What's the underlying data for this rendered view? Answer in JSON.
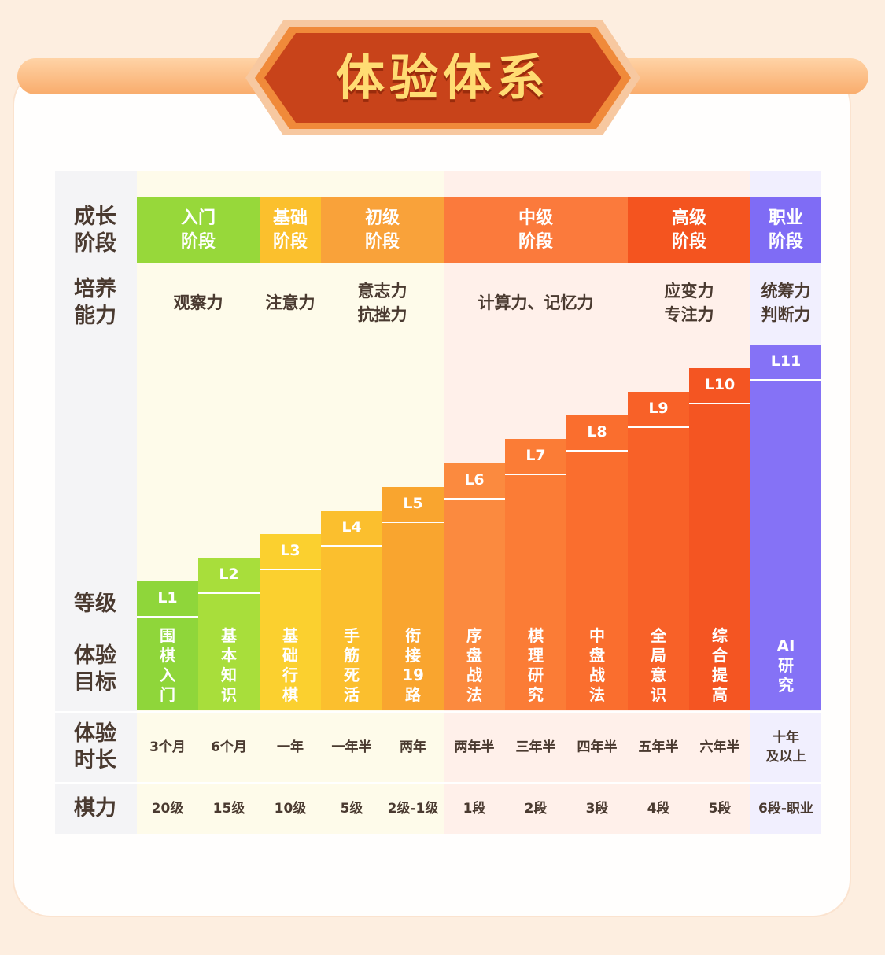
{
  "title": "体验体系",
  "row_labels": {
    "stage": "成长\n阶段",
    "ability": "培养\n能力",
    "level": "等级",
    "goal": "体验\n目标",
    "duration": "体验\n时长",
    "skill": "棋力"
  },
  "stages": [
    {
      "label": "入门\n阶段",
      "color": "#97d83a"
    },
    {
      "label": "基础\n阶段",
      "color": "#fbc02d"
    },
    {
      "label": "初级\n阶段",
      "color": "#f9a23a"
    },
    {
      "label": "中级\n阶段",
      "color": "#fb7a3c"
    },
    {
      "label": "高级\n阶段",
      "color": "#f4541f"
    },
    {
      "label": "职业\n阶段",
      "color": "#7f6cf5"
    }
  ],
  "abilities": [
    "观察力",
    "注意力",
    "意志力\n抗挫力",
    "计算力、记忆力",
    "应变力\n专注力",
    "统筹力\n判断力"
  ],
  "levels": [
    {
      "level": "L1",
      "goal": "围\n棋\n入\n门",
      "duration": "3个月",
      "skill": "20级",
      "color": "#8fd63a",
      "progress": 1
    },
    {
      "level": "L2",
      "goal": "基\n本\n知\n识",
      "duration": "6个月",
      "skill": "15级",
      "color": "#a8de3b",
      "progress": 2
    },
    {
      "level": "L3",
      "goal": "基\n础\n行\n棋",
      "duration": "一年",
      "skill": "10级",
      "color": "#fbd02f",
      "progress": 3
    },
    {
      "level": "L4",
      "goal": "手\n筋\n死\n活",
      "duration": "一年半",
      "skill": "5级",
      "color": "#fbbf2e",
      "progress": 4
    },
    {
      "level": "L5",
      "goal": "衔\n接\n19\n路",
      "duration": "两年",
      "skill": "2级-1级",
      "color": "#f9a52f",
      "progress": 5
    },
    {
      "level": "L6",
      "goal": "序\n盘\n战\n法",
      "duration": "两年半",
      "skill": "1段",
      "color": "#fb8a3f",
      "progress": 6
    },
    {
      "level": "L7",
      "goal": "棋\n理\n研\n究",
      "duration": "三年半",
      "skill": "2段",
      "color": "#fb7c36",
      "progress": 7
    },
    {
      "level": "L8",
      "goal": "中\n盘\n战\n法",
      "duration": "四年半",
      "skill": "3段",
      "color": "#fa6e2e",
      "progress": 8
    },
    {
      "level": "L9",
      "goal": "全\n局\n意\n识",
      "duration": "五年半",
      "skill": "4段",
      "color": "#f86128",
      "progress": 9
    },
    {
      "level": "L10",
      "goal": "综\n合\n提\n高",
      "duration": "六年半",
      "skill": "5段",
      "color": "#f45522",
      "progress": 10
    },
    {
      "level": "L11",
      "goal": "AI\n研\n究",
      "duration": "十年\n及以上",
      "skill": "6段-职业",
      "color": "#8572f6",
      "progress": 11
    }
  ]
}
